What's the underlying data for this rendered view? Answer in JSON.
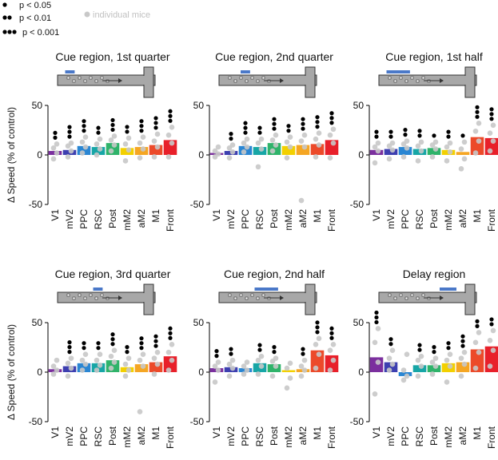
{
  "legend": {
    "items": [
      "p < 0.05",
      "p < 0.01",
      "p < 0.001"
    ],
    "mice": "individual mice"
  },
  "chart_data": [
    {
      "type": "bar",
      "title": "Cue region, 1st quarter",
      "ylabel": "Δ Speed (% of control)",
      "categories": [
        "V1",
        "mV2",
        "PPC",
        "RSC",
        "Post",
        "mM2",
        "aM2",
        "M1",
        "Front"
      ],
      "colors": [
        "#7b2f9e",
        "#3d3fb0",
        "#2a86d3",
        "#17a6a6",
        "#2fb36a",
        "#f3d000",
        "#f5a623",
        "#ec4a2a",
        "#e8202a"
      ],
      "values": [
        4,
        5,
        9,
        8,
        12,
        7,
        8,
        10,
        15
      ],
      "significance": [
        2,
        3,
        3,
        2,
        3,
        2,
        3,
        3,
        3
      ],
      "mice": [
        [
          -4,
          2,
          7,
          11
        ],
        [
          -2,
          4,
          9,
          12
        ],
        [
          2,
          8,
          13,
          18
        ],
        [
          0,
          6,
          11,
          16
        ],
        [
          4,
          10,
          15,
          19
        ],
        [
          -6,
          5,
          11,
          17
        ],
        [
          -3,
          6,
          12,
          18
        ],
        [
          -2,
          8,
          14,
          21
        ],
        [
          -2,
          12,
          20,
          28
        ]
      ],
      "ylim": [
        -50,
        50
      ],
      "yticks": [
        -50,
        0,
        50
      ]
    },
    {
      "type": "bar",
      "title": "Cue region, 2nd quarter",
      "categories": [
        "V1",
        "mV2",
        "PPC",
        "RSC",
        "Post",
        "mM2",
        "aM2",
        "M1",
        "Front"
      ],
      "colors": [
        "#7b2f9e",
        "#3d3fb0",
        "#2a86d3",
        "#17a6a6",
        "#2fb36a",
        "#f3d000",
        "#f5a623",
        "#ec4a2a",
        "#e8202a"
      ],
      "values": [
        2,
        4,
        9,
        8,
        12,
        9,
        10,
        11,
        15
      ],
      "significance": [
        0,
        2,
        3,
        2,
        3,
        2,
        3,
        3,
        3
      ],
      "mice": [
        [
          -2,
          1,
          4,
          8
        ],
        [
          -3,
          3,
          7,
          10
        ],
        [
          3,
          8,
          12,
          16
        ],
        [
          -12,
          6,
          12,
          16
        ],
        [
          4,
          10,
          15,
          20
        ],
        [
          -3,
          8,
          13,
          18
        ],
        [
          -46,
          8,
          14,
          20
        ],
        [
          -2,
          10,
          16,
          22
        ],
        [
          -3,
          12,
          20,
          26
        ]
      ],
      "ylim": [
        -50,
        50
      ],
      "yticks": [
        -50,
        0,
        50
      ]
    },
    {
      "type": "bar",
      "title": "Cue region, 1st half",
      "categories": [
        "V1",
        "mV2",
        "PPC",
        "RSC",
        "Post",
        "mM2",
        "aM2",
        "M1",
        "Front"
      ],
      "colors": [
        "#7b2f9e",
        "#3d3fb0",
        "#2a86d3",
        "#17a6a6",
        "#2fb36a",
        "#f3d000",
        "#f5a623",
        "#ec4a2a",
        "#e8202a"
      ],
      "values": [
        5,
        6,
        8,
        6,
        7,
        5,
        3,
        18,
        17
      ],
      "significance": [
        2,
        2,
        2,
        2,
        1,
        2,
        1,
        3,
        3
      ],
      "mice": [
        [
          -8,
          4,
          8,
          12
        ],
        [
          -4,
          5,
          9,
          12
        ],
        [
          -2,
          7,
          11,
          14
        ],
        [
          -6,
          4,
          9,
          13
        ],
        [
          -2,
          6,
          10,
          13
        ],
        [
          -6,
          3,
          8,
          12
        ],
        [
          -14,
          -4,
          6,
          13
        ],
        [
          2,
          14,
          24,
          32
        ],
        [
          4,
          14,
          22,
          30
        ]
      ],
      "ylim": [
        -50,
        50
      ],
      "yticks": [
        -50,
        0,
        50
      ]
    },
    {
      "type": "bar",
      "title": "Cue region, 3rd quarter",
      "ylabel": "Δ Speed (% of control)",
      "categories": [
        "V1",
        "mV2",
        "PPC",
        "RSC",
        "Post",
        "mM2",
        "aM2",
        "M1",
        "Front"
      ],
      "colors": [
        "#7b2f9e",
        "#3d3fb0",
        "#2a86d3",
        "#17a6a6",
        "#2fb36a",
        "#f3d000",
        "#f5a623",
        "#ec4a2a",
        "#e8202a"
      ],
      "values": [
        3,
        6,
        9,
        9,
        12,
        5,
        8,
        10,
        16
      ],
      "significance": [
        0,
        3,
        2,
        2,
        3,
        2,
        3,
        3,
        3
      ],
      "mice": [
        [
          -2,
          2,
          6,
          12
        ],
        [
          -4,
          4,
          9,
          14
        ],
        [
          2,
          8,
          12,
          18
        ],
        [
          2,
          7,
          12,
          18
        ],
        [
          4,
          10,
          16,
          22
        ],
        [
          -4,
          2,
          8,
          14
        ],
        [
          -40,
          6,
          12,
          18
        ],
        [
          -2,
          8,
          14,
          20
        ],
        [
          2,
          12,
          20,
          28
        ]
      ],
      "ylim": [
        -50,
        50
      ],
      "yticks": [
        -50,
        0,
        50
      ]
    },
    {
      "type": "bar",
      "title": "Cue region, 2nd half",
      "categories": [
        "V1",
        "mV2",
        "PPC",
        "RSC",
        "Post",
        "mM2",
        "aM2",
        "M1",
        "Front"
      ],
      "colors": [
        "#7b2f9e",
        "#3d3fb0",
        "#2a86d3",
        "#17a6a6",
        "#2fb36a",
        "#f3d000",
        "#f5a623",
        "#ec4a2a",
        "#e8202a"
      ],
      "values": [
        4,
        5,
        4,
        9,
        8,
        2,
        3,
        22,
        17
      ],
      "significance": [
        2,
        2,
        0,
        2,
        2,
        0,
        2,
        3,
        3
      ],
      "mice": [
        [
          -10,
          2,
          6,
          10
        ],
        [
          -4,
          4,
          8,
          12
        ],
        [
          -2,
          2,
          6,
          10
        ],
        [
          -2,
          6,
          12,
          16
        ],
        [
          -4,
          6,
          11,
          14
        ],
        [
          -16,
          -6,
          4,
          9
        ],
        [
          -4,
          2,
          6,
          12
        ],
        [
          4,
          18,
          28,
          34
        ],
        [
          2,
          12,
          22,
          28
        ]
      ],
      "ylim": [
        -50,
        50
      ],
      "yticks": [
        -50,
        0,
        50
      ]
    },
    {
      "type": "bar",
      "title": "Delay region",
      "categories": [
        "V1",
        "mV2",
        "PPC",
        "RSC",
        "Post",
        "mM2",
        "aM2",
        "M1",
        "Front"
      ],
      "colors": [
        "#7b2f9e",
        "#3d3fb0",
        "#2a86d3",
        "#17a6a6",
        "#2fb36a",
        "#f3d000",
        "#f5a623",
        "#ec4a2a",
        "#e8202a"
      ],
      "values": [
        15,
        10,
        -4,
        7,
        7,
        9,
        10,
        23,
        26
      ],
      "significance": [
        3,
        2,
        0,
        2,
        2,
        2,
        3,
        2,
        2
      ],
      "mice": [
        [
          -22,
          10,
          30,
          44
        ],
        [
          2,
          8,
          14,
          22
        ],
        [
          -8,
          -4,
          2,
          18
        ],
        [
          -4,
          6,
          12,
          16
        ],
        [
          -2,
          6,
          10,
          14
        ],
        [
          -10,
          6,
          12,
          18
        ],
        [
          -4,
          8,
          14,
          20
        ],
        [
          4,
          20,
          30,
          40
        ],
        [
          6,
          22,
          32,
          42
        ]
      ],
      "ylim": [
        -50,
        50
      ],
      "yticks": [
        -50,
        0,
        50
      ]
    }
  ]
}
